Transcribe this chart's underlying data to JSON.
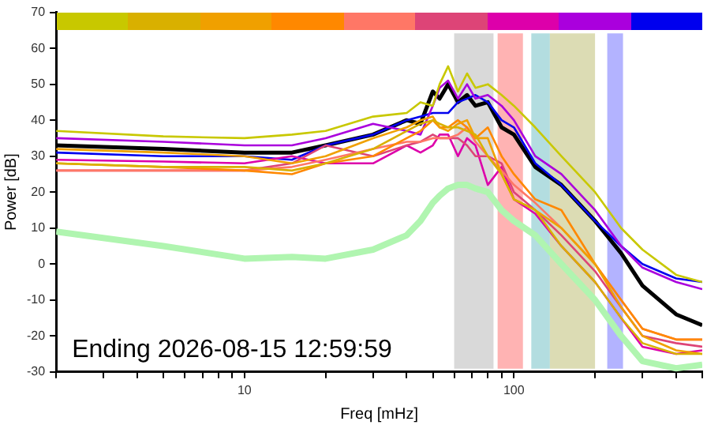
{
  "chart_data": {
    "type": "line",
    "xlabel": "Freq [mHz]",
    "ylabel": "Power [dB]",
    "annotations": [
      "Ending 2026-08-15 12:59:59"
    ],
    "x": [
      2,
      5,
      10,
      15,
      20,
      30,
      40,
      45,
      50,
      53,
      57,
      62,
      67,
      72,
      80,
      90,
      100,
      120,
      150,
      200,
      250,
      300,
      400,
      500
    ],
    "series": [
      {
        "color": "#c8c800",
        "values": [
          37,
          35.5,
          35,
          36,
          37,
          41,
          42,
          45,
          44,
          50,
          55,
          48,
          53,
          49,
          50,
          47,
          44,
          38,
          30,
          20,
          10,
          4,
          -3,
          -5
        ]
      },
      {
        "color": "#d9b000",
        "values": [
          28,
          27,
          27,
          26,
          28,
          32,
          37,
          39,
          40,
          39,
          38,
          38,
          37,
          36,
          30,
          25,
          18,
          15,
          5,
          -5,
          -15,
          -22,
          -25,
          -25
        ]
      },
      {
        "color": "#f0a000",
        "values": [
          32,
          31,
          30,
          28,
          30,
          35,
          38,
          40,
          41,
          38,
          37,
          39,
          40,
          35,
          35,
          25,
          18,
          15,
          10,
          0,
          -12,
          -20,
          -24,
          -25
        ]
      },
      {
        "color": "#ff8800",
        "values": [
          28,
          27,
          26,
          25,
          28,
          30,
          35,
          37,
          40,
          38,
          38,
          40,
          38,
          35,
          38,
          30,
          25,
          18,
          15,
          0,
          -10,
          -18,
          -21,
          -21
        ]
      },
      {
        "color": "#ff7766",
        "values": [
          26,
          26,
          26,
          27,
          29,
          32,
          34,
          34,
          35,
          35,
          35,
          36,
          38,
          34,
          30,
          26,
          22,
          17,
          10,
          0,
          -10,
          -18,
          -21,
          -21
        ]
      },
      {
        "color": "#dd4477",
        "values": [
          26,
          26,
          26,
          28,
          33,
          30,
          33,
          34,
          36,
          35,
          35,
          35,
          33,
          30,
          30,
          28,
          20,
          15,
          8,
          -2,
          -12,
          -20,
          -22,
          -23
        ]
      },
      {
        "color": "#dd00aa",
        "values": [
          29,
          28.5,
          28,
          30,
          28,
          28,
          33,
          31,
          33,
          36,
          36,
          30,
          35,
          33,
          22,
          27,
          18,
          14,
          5,
          -5,
          -15,
          -23,
          -25,
          -24
        ]
      },
      {
        "color": "#aa00dd",
        "values": [
          35,
          34,
          33,
          33,
          35,
          39,
          37,
          36,
          44,
          49,
          51,
          46,
          50,
          46,
          47,
          44,
          40,
          30,
          25,
          15,
          5,
          -1,
          -5,
          -7
        ]
      },
      {
        "color": "#0000ee",
        "values": [
          31,
          30,
          30,
          29,
          33,
          36,
          40,
          41,
          42,
          42,
          42,
          45,
          46,
          47,
          45,
          40,
          38,
          28,
          22,
          12,
          5,
          0,
          -4,
          -5
        ]
      },
      {
        "color": "#000000",
        "values": [
          33,
          32,
          31,
          31,
          33,
          36,
          40,
          39,
          48,
          46,
          50,
          45,
          47,
          44,
          45,
          38,
          36,
          27,
          22,
          12,
          3,
          -6,
          -14,
          -17
        ]
      },
      {
        "color": "#b0f5b0",
        "values": [
          9,
          5,
          1.5,
          2,
          1.5,
          4,
          8,
          12,
          17,
          19,
          21,
          22,
          22,
          21,
          20,
          15,
          12,
          8,
          0,
          -10,
          -20,
          -27,
          -29,
          -28
        ]
      }
    ],
    "bands": [
      {
        "axis": "x",
        "from": 60,
        "to": 84,
        "color": "#d9d9d9"
      },
      {
        "axis": "x",
        "from": 87,
        "to": 108,
        "color": "#ffb3b3"
      },
      {
        "axis": "x",
        "from": 116,
        "to": 136,
        "color": "#b3dde0"
      },
      {
        "axis": "x",
        "from": 136,
        "to": 200,
        "color": "#dcdcb4"
      },
      {
        "axis": "x",
        "from": 222,
        "to": 254,
        "color": "#b3b3ff"
      }
    ],
    "log": "x",
    "grid": false,
    "legend": false,
    "xlim": [
      2,
      500
    ],
    "xticks": [
      {
        "value": 2,
        "label": null
      },
      {
        "value": 3,
        "label": null
      },
      {
        "value": 4,
        "label": null
      },
      {
        "value": 5,
        "label": null
      },
      {
        "value": 6,
        "label": null
      },
      {
        "value": 7,
        "label": null
      },
      {
        "value": 8,
        "label": null
      },
      {
        "value": 9,
        "label": null
      },
      10,
      {
        "value": 20,
        "label": null
      },
      {
        "value": 30,
        "label": null
      },
      {
        "value": 40,
        "label": null
      },
      {
        "value": 50,
        "label": null
      },
      {
        "value": 60,
        "label": null
      },
      {
        "value": 70,
        "label": null
      },
      {
        "value": 80,
        "label": null
      },
      {
        "value": 90,
        "label": null
      },
      100,
      {
        "value": 200,
        "label": null
      },
      {
        "value": 300,
        "label": null
      },
      {
        "value": 400,
        "label": null
      },
      {
        "value": 500,
        "label": null
      }
    ],
    "ylim": [
      -30,
      70
    ],
    "yticks": [
      -30,
      -20,
      -10,
      0,
      10,
      20,
      30,
      40,
      50,
      60,
      70
    ]
  }
}
